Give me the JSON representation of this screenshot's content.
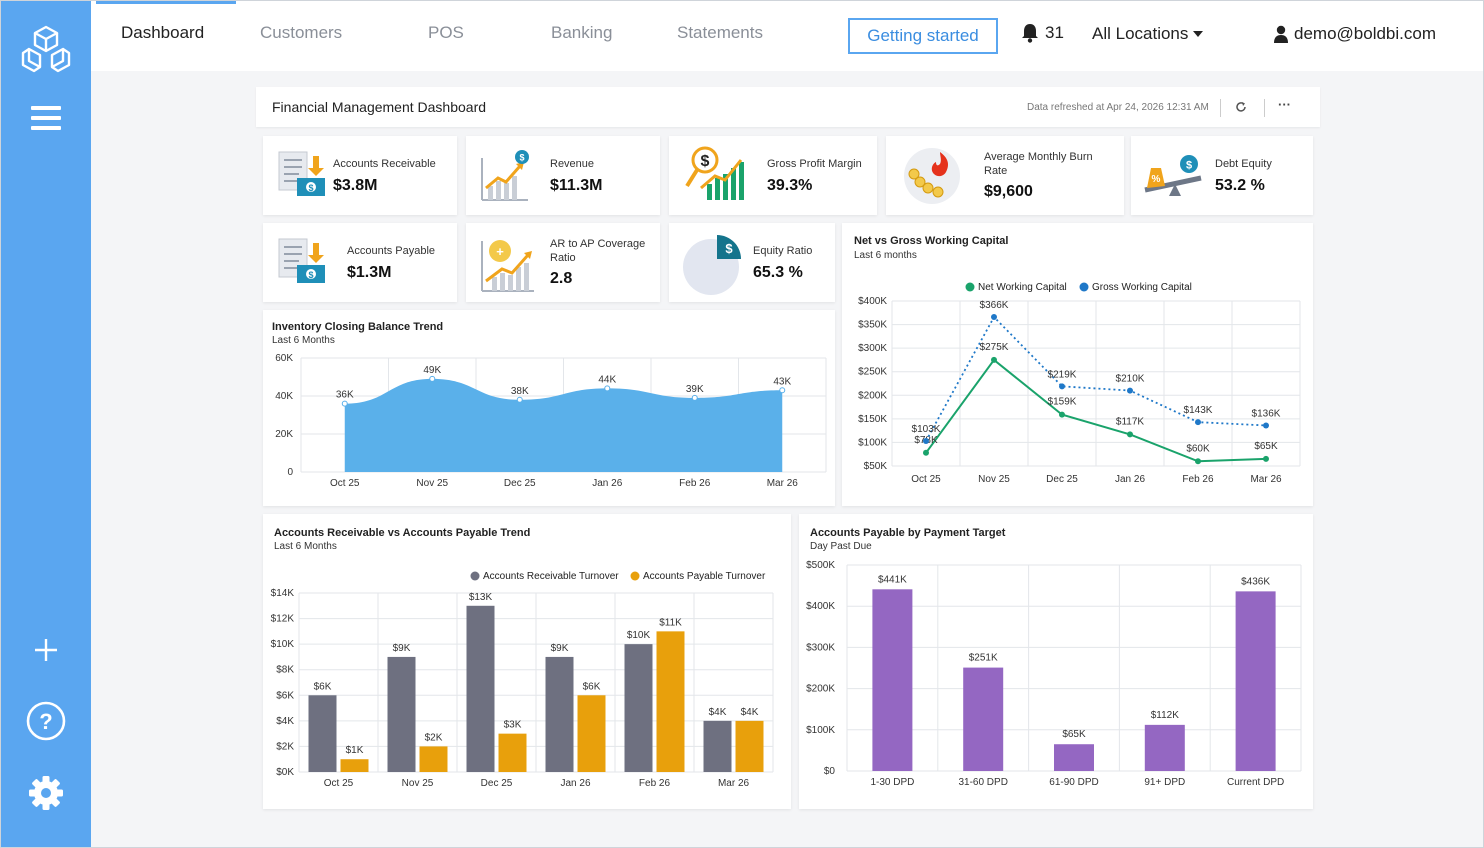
{
  "nav": {
    "tabs": [
      "Dashboard",
      "Customers",
      "POS",
      "Banking",
      "Statements"
    ],
    "getting_started": "Getting started",
    "notifications_count": "31",
    "location": "All Locations",
    "user_email": "demo@boldbi.com"
  },
  "dashboard": {
    "title": "Financial Management Dashboard",
    "refresh_text": "Data refreshed at Apr 24, 2026 12:31 AM",
    "more_label": "···"
  },
  "kpis": {
    "accounts_receivable": {
      "label": "Accounts Receivable",
      "value": "$3.8M"
    },
    "revenue": {
      "label": "Revenue",
      "value": "$11.3M"
    },
    "gross_profit_margin": {
      "label": "Gross Profit Margin",
      "value": "39.3%"
    },
    "avg_monthly_burn": {
      "label": "Average Monthly Burn Rate",
      "value": "$9,600"
    },
    "debt_equity": {
      "label": "Debt Equity",
      "value": "53.2 %"
    },
    "accounts_payable": {
      "label": "Accounts Payable",
      "value": "$1.3M"
    },
    "ar_ap_coverage": {
      "label": "AR to AP Coverage Ratio",
      "value": "2.8"
    },
    "equity_ratio": {
      "label": "Equity Ratio",
      "value": "65.3 %"
    }
  },
  "colors": {
    "sidebar": "#5aa6f0",
    "area": "#5ab0ea",
    "net_wc": "#1aa36b",
    "gross_wc": "#1f78c8",
    "ar_turnover": "#6e7080",
    "ap_turnover": "#e8a00c",
    "payable_target": "#9467c2"
  },
  "chart_data": [
    {
      "id": "inventory",
      "type": "area",
      "title": "Inventory Closing Balance Trend",
      "subtitle": "Last 6 Months",
      "categories": [
        "Oct 25",
        "Nov 25",
        "Dec 25",
        "Jan 26",
        "Feb 26",
        "Mar 26"
      ],
      "values": [
        36000,
        49000,
        38000,
        44000,
        39000,
        43000
      ],
      "labels": [
        "36K",
        "49K",
        "38K",
        "44K",
        "39K",
        "43K"
      ],
      "ylim": [
        0,
        60000
      ],
      "yticks": [
        "0",
        "20K",
        "40K",
        "60K"
      ],
      "grid": true
    },
    {
      "id": "working_capital",
      "type": "line",
      "title": "Net vs Gross Working Capital",
      "subtitle": "Last 6 months",
      "categories": [
        "Oct 25",
        "Nov 25",
        "Dec 25",
        "Jan 26",
        "Feb 26",
        "Mar 26"
      ],
      "series": [
        {
          "name": "Net Working Capital",
          "values": [
            78000,
            275000,
            159000,
            117000,
            60000,
            65000
          ],
          "labels": [
            "$78K",
            "$275K",
            "$159K",
            "$117K",
            "$60K",
            "$65K"
          ]
        },
        {
          "name": "Gross Working Capital",
          "values": [
            103000,
            366000,
            219000,
            210000,
            143000,
            136000
          ],
          "labels": [
            "$103K",
            "$366K",
            "$219K",
            "$210K",
            "$143K",
            "$136K"
          ]
        }
      ],
      "ylim": [
        50000,
        400000
      ],
      "yticks": [
        "$50K",
        "$100K",
        "$150K",
        "$200K",
        "$250K",
        "$300K",
        "$350K",
        "$400K"
      ],
      "legend": "top",
      "grid": true
    },
    {
      "id": "ar_ap_trend",
      "type": "bar",
      "title": "Accounts Receivable vs Accounts Payable Trend",
      "subtitle": "Last 6 Months",
      "categories": [
        "Oct 25",
        "Nov 25",
        "Dec 25",
        "Jan 26",
        "Feb 26",
        "Mar 26"
      ],
      "series": [
        {
          "name": "Accounts Receivable Turnover",
          "values": [
            6000,
            9000,
            13000,
            9000,
            10000,
            4000
          ],
          "labels": [
            "$6K",
            "$9K",
            "$13K",
            "$9K",
            "$10K",
            "$4K"
          ]
        },
        {
          "name": "Accounts Payable Turnover",
          "values": [
            1000,
            2000,
            3000,
            6000,
            11000,
            4000
          ],
          "labels": [
            "$1K",
            "$2K",
            "$3K",
            "$6K",
            "$11K",
            "$4K"
          ]
        }
      ],
      "ylim": [
        0,
        14000
      ],
      "yticks": [
        "$0K",
        "$2K",
        "$4K",
        "$6K",
        "$8K",
        "$10K",
        "$12K",
        "$14K"
      ],
      "legend": "top",
      "grid": true
    },
    {
      "id": "payable_target",
      "type": "bar",
      "title": "Accounts Payable by Payment Target",
      "subtitle": "Day Past Due",
      "categories": [
        "1-30 DPD",
        "31-60 DPD",
        "61-90 DPD",
        "91+ DPD",
        "Current DPD"
      ],
      "values": [
        441000,
        251000,
        65000,
        112000,
        436000
      ],
      "labels": [
        "$441K",
        "$251K",
        "$65K",
        "$112K",
        "$436K"
      ],
      "ylim": [
        0,
        500000
      ],
      "yticks": [
        "$0",
        "$100K",
        "$200K",
        "$300K",
        "$400K",
        "$500K"
      ],
      "grid": true
    }
  ]
}
